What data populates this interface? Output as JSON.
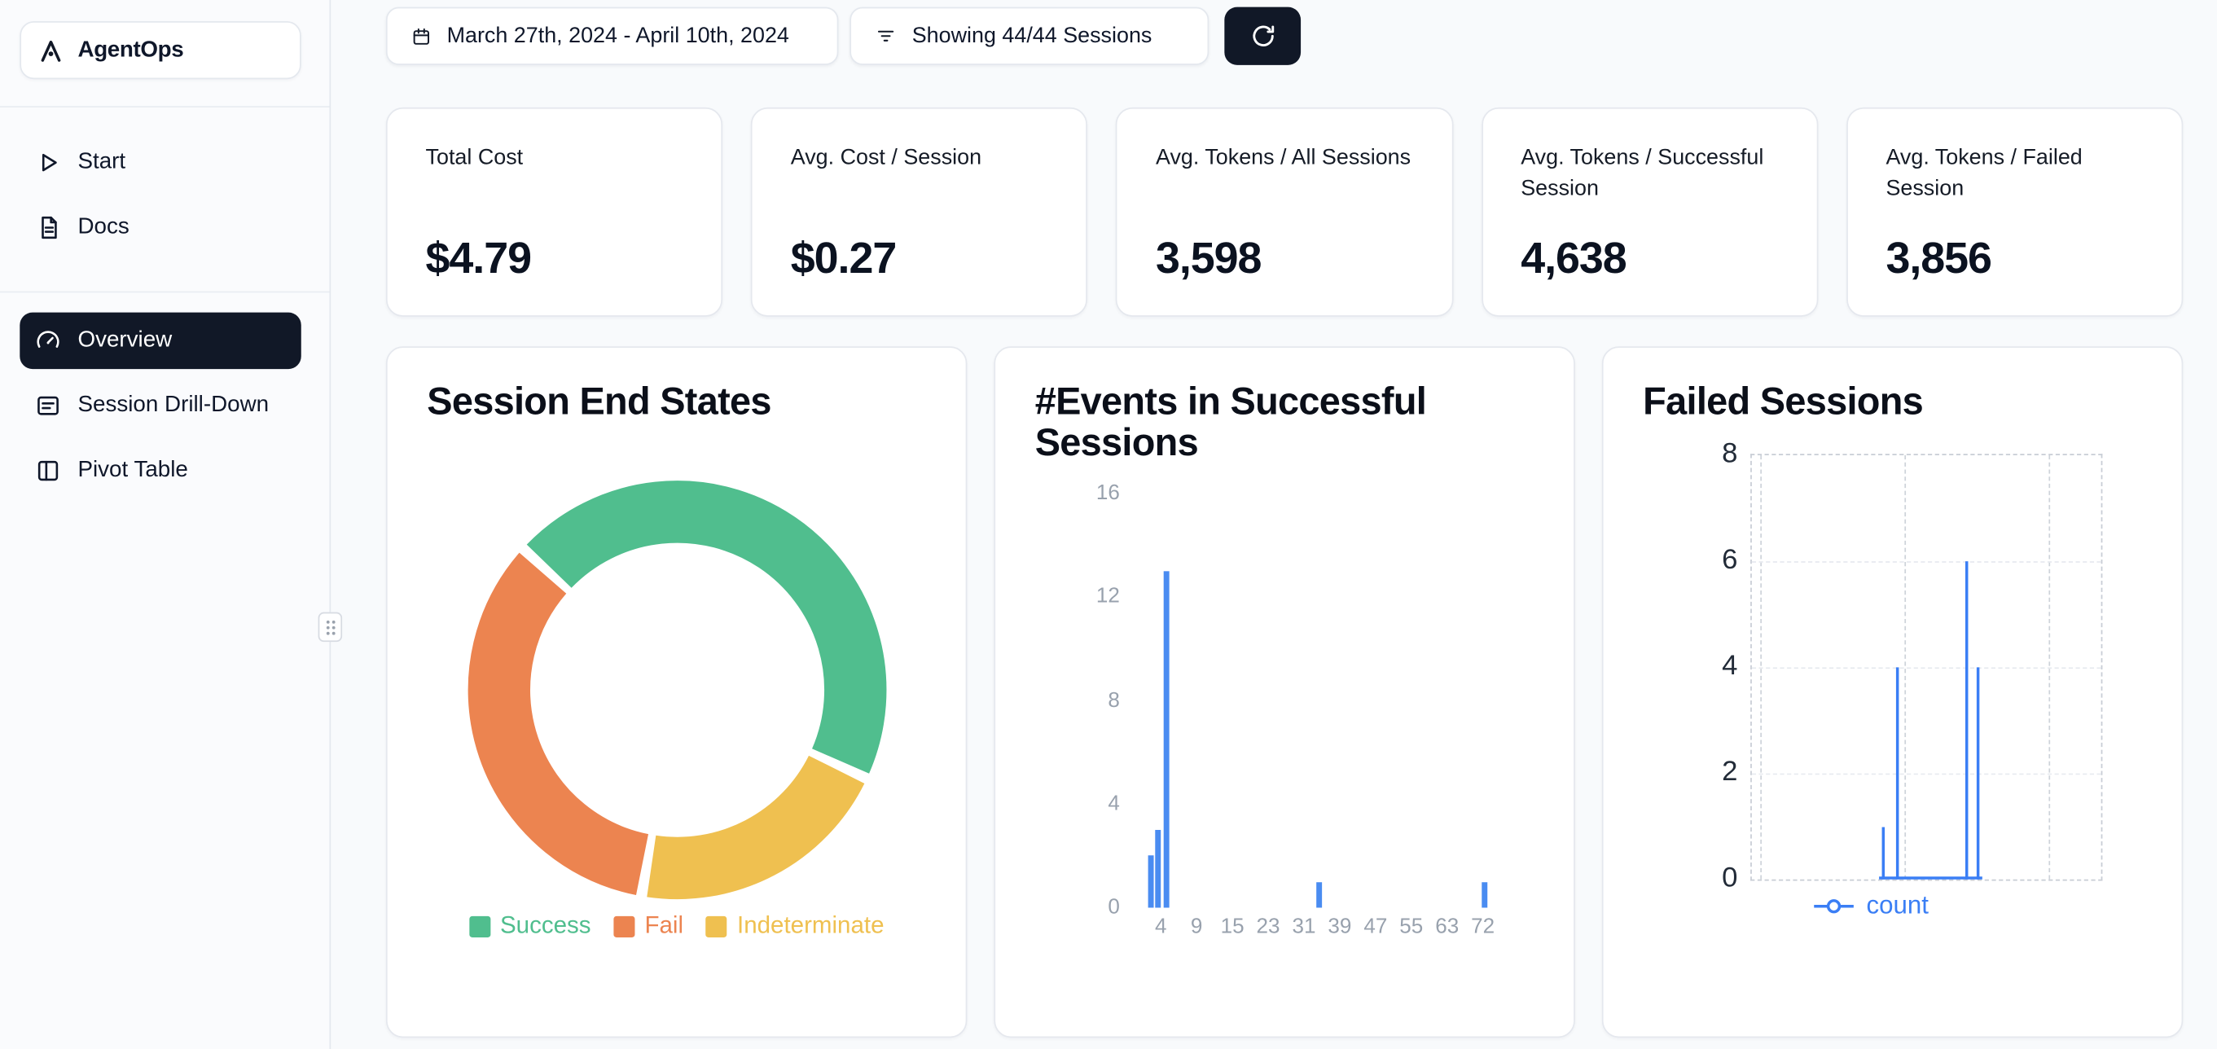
{
  "app": {
    "name": "AgentOps"
  },
  "sidebar": {
    "items": [
      {
        "id": "start",
        "label": "Start",
        "icon": "play-icon",
        "active": false
      },
      {
        "id": "docs",
        "label": "Docs",
        "icon": "document-icon",
        "active": false
      },
      {
        "id": "overview",
        "label": "Overview",
        "icon": "gauge-icon",
        "active": true
      },
      {
        "id": "session-drill-down",
        "label": "Session Drill-Down",
        "icon": "list-card-icon",
        "active": false
      },
      {
        "id": "pivot-table",
        "label": "Pivot Table",
        "icon": "columns-icon",
        "active": false
      }
    ]
  },
  "toolbar": {
    "date_range_label": "March 27th, 2024 - April 10th, 2024",
    "sessions_filter_label": "Showing 44/44 Sessions"
  },
  "stats": [
    {
      "label": "Total Cost",
      "value": "$4.79"
    },
    {
      "label": "Avg. Cost / Session",
      "value": "$0.27"
    },
    {
      "label": "Avg. Tokens / All Sessions",
      "value": "3,598"
    },
    {
      "label": "Avg. Tokens / Successful Session",
      "value": "4,638"
    },
    {
      "label": "Avg. Tokens / Failed Session",
      "value": "3,856"
    }
  ],
  "colors": {
    "accent_dark": "#111827",
    "success_green": "#50BE8E",
    "fail_orange": "#EC8450",
    "indeterminate_yellow": "#EFC050",
    "bar_blue": "#4A8CF1",
    "line_blue": "#3A7EF5"
  },
  "chart_data": [
    {
      "type": "pie",
      "title": "Session End States",
      "labels": [
        "Success",
        "Fail",
        "Indeterminate"
      ],
      "values": [
        20,
        15,
        9
      ],
      "total_sessions": 44,
      "colors": [
        "#50BE8E",
        "#EC8450",
        "#EFC050"
      ],
      "hole": 0.7,
      "legend_position": "bottom",
      "draw_order": [
        0,
        2,
        1
      ],
      "start_angle_deg": -46,
      "pad_angle_deg": 3
    },
    {
      "type": "bar",
      "title": "#Events in Successful Sessions",
      "xlabel": "",
      "ylabel": "",
      "x_tick_labels": [
        "4",
        "9",
        "15",
        "23",
        "31",
        "39",
        "47",
        "55",
        "63",
        "72"
      ],
      "y_ticks": [
        0,
        4,
        8,
        12,
        16
      ],
      "ylim": [
        0,
        16
      ],
      "grid": false,
      "bar_color": "#4A8CF1",
      "bars": [
        {
          "x": 3,
          "count": 2,
          "pos": 0.037
        },
        {
          "x": 4,
          "count": 3,
          "pos": 0.054
        },
        {
          "x": 5,
          "count": 13,
          "pos": 0.075
        },
        {
          "x": 35,
          "count": 1,
          "pos": 0.44
        },
        {
          "x": 72,
          "count": 1,
          "pos": 0.837
        }
      ],
      "tick_pos_start": 0.061,
      "tick_pos_step": 0.0858
    },
    {
      "type": "line",
      "title": "Failed Sessions",
      "y_ticks": [
        0,
        2,
        4,
        6,
        8
      ],
      "ylim": [
        0,
        8
      ],
      "grid": "dashed",
      "grid_x": [
        0.024,
        0.437,
        0.85
      ],
      "legend_position": "bottom",
      "series": [
        {
          "name": "count",
          "color": "#3A7EF5",
          "points": [
            {
              "pos": 0.376,
              "y": 1
            },
            {
              "pos": 0.417,
              "y": 4
            },
            {
              "pos": 0.615,
              "y": 6
            },
            {
              "pos": 0.648,
              "y": 4
            }
          ]
        }
      ]
    }
  ]
}
